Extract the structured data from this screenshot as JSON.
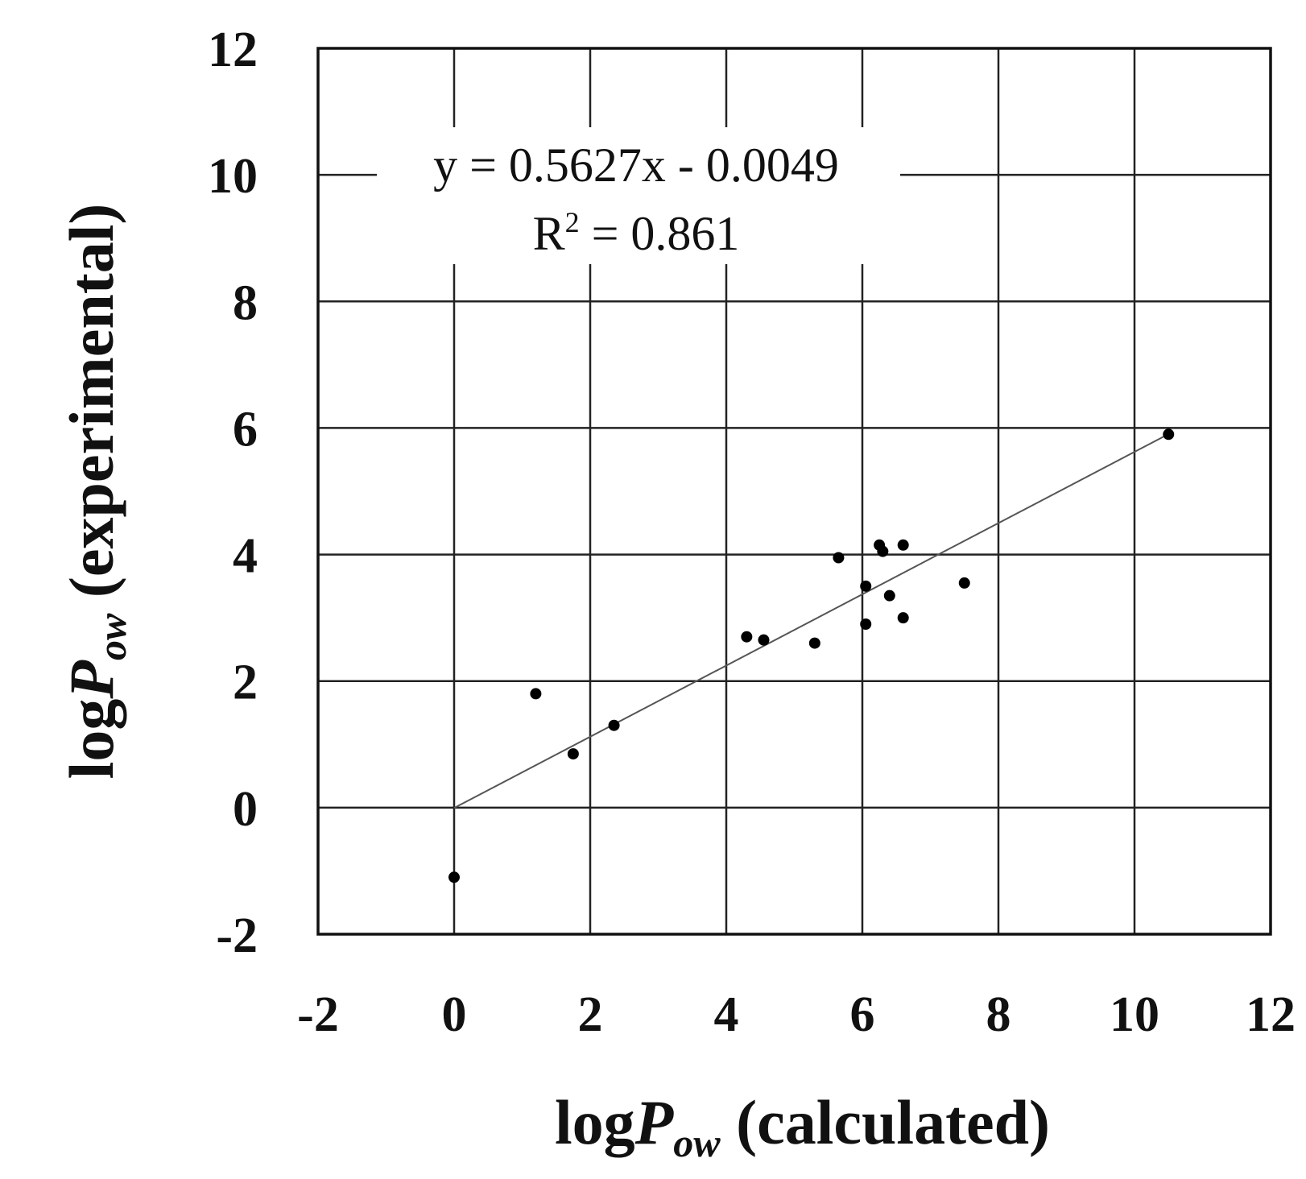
{
  "chart_data": {
    "type": "scatter",
    "xlabel": {
      "prefix": "log",
      "var": "P",
      "sub": "ow",
      "suffix": " (calculated)"
    },
    "ylabel": {
      "prefix": "log",
      "var": "P",
      "sub": "ow",
      "suffix": " (experimental)"
    },
    "xlim": [
      -2,
      12
    ],
    "ylim": [
      -2,
      12
    ],
    "xticks": [
      "-2",
      "0",
      "2",
      "4",
      "6",
      "8",
      "10",
      "12"
    ],
    "yticks": [
      "-2",
      "0",
      "2",
      "4",
      "6",
      "8",
      "10",
      "12"
    ],
    "grid": true,
    "points": [
      {
        "x": 0.0,
        "y": -1.1
      },
      {
        "x": 1.2,
        "y": 1.8
      },
      {
        "x": 1.75,
        "y": 0.85
      },
      {
        "x": 2.35,
        "y": 1.3
      },
      {
        "x": 4.3,
        "y": 2.7
      },
      {
        "x": 4.55,
        "y": 2.65
      },
      {
        "x": 5.3,
        "y": 2.6
      },
      {
        "x": 5.65,
        "y": 3.95
      },
      {
        "x": 6.05,
        "y": 3.5
      },
      {
        "x": 6.05,
        "y": 2.9
      },
      {
        "x": 6.25,
        "y": 4.15
      },
      {
        "x": 6.3,
        "y": 4.05
      },
      {
        "x": 6.4,
        "y": 3.35
      },
      {
        "x": 6.6,
        "y": 4.15
      },
      {
        "x": 6.6,
        "y": 3.0
      },
      {
        "x": 7.5,
        "y": 3.55
      },
      {
        "x": 10.5,
        "y": 5.9
      }
    ],
    "trendline": {
      "slope": 0.5627,
      "intercept": -0.0049,
      "x_range": [
        0,
        10.5
      ]
    },
    "annotations": {
      "equation": "y = 0.5627x - 0.0049",
      "r2_prefix": "R",
      "r2_sup": "2",
      "r2_rest": " = 0.861"
    }
  }
}
